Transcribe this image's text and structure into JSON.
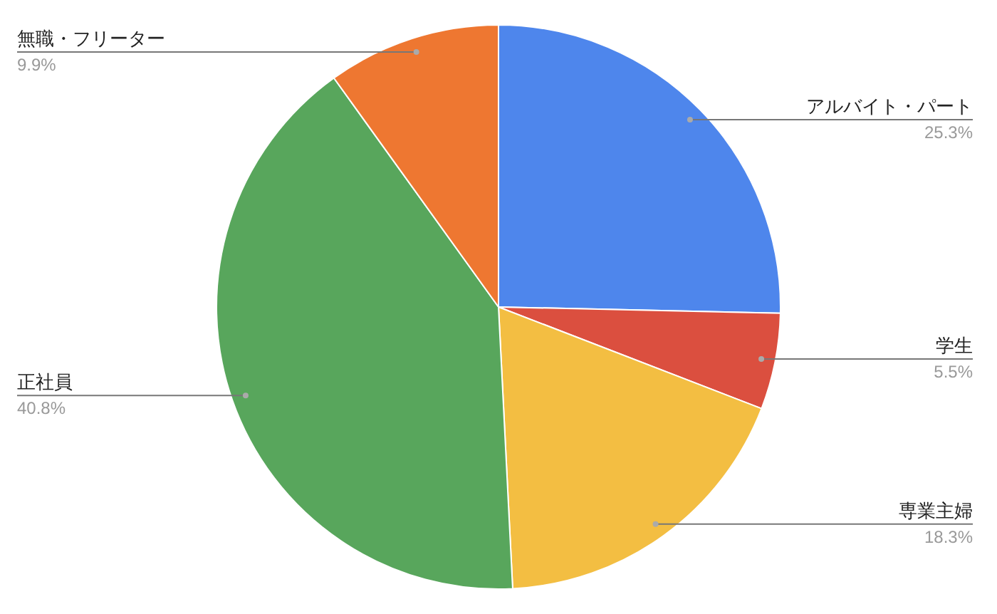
{
  "chart_data": {
    "type": "pie",
    "categories": [
      "アルバイト・パート",
      "学生",
      "専業主婦",
      "正社員",
      "無職・フリーター"
    ],
    "values": [
      25.3,
      5.5,
      18.3,
      40.8,
      9.9
    ],
    "value_labels": [
      "25.3%",
      "5.5%",
      "18.3%",
      "40.8%",
      "9.9%"
    ],
    "colors": [
      "#4e86ec",
      "#db4f3f",
      "#f3be42",
      "#58a65c",
      "#ee7731"
    ]
  }
}
